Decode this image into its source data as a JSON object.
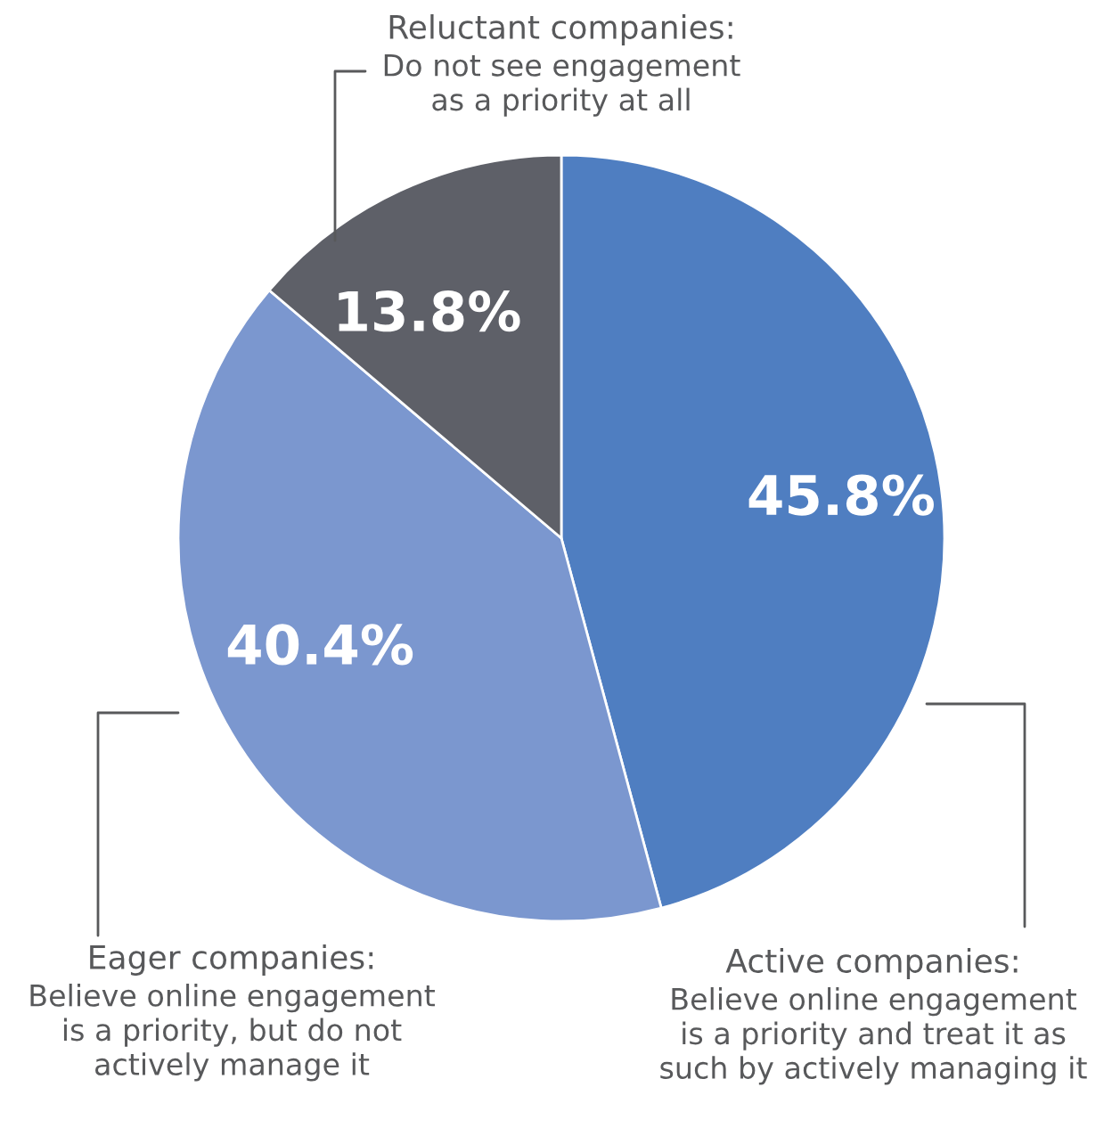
{
  "chart_data": {
    "type": "pie",
    "categories": [
      "Active companies:\nBelieve online engagement\nis a priority and treat it as\nsuch by actively managing it",
      "Eager companies:\nBelieve online engagement\nis a priority, but do not\nactively manage it",
      "Reluctant companies:\nDo not see engagement\nas a priority at all"
    ],
    "values": [
      45.8,
      40.4,
      13.8
    ],
    "value_labels": [
      "45.8%",
      "40.4%",
      "13.8%"
    ],
    "colors": [
      "#4f7ec1",
      "#7b97cf",
      "#5e6068"
    ]
  }
}
